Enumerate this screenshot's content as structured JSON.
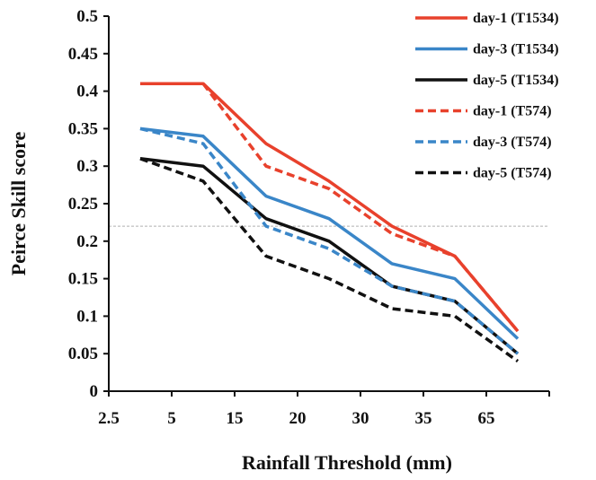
{
  "chart_data": {
    "type": "line",
    "title": "",
    "xlabel": "Rainfall Threshold (mm)",
    "ylabel": "Peirce Skill score",
    "categories": [
      "2.5",
      "5",
      "15",
      "20",
      "30",
      "35",
      "65"
    ],
    "ylim": [
      0,
      0.5
    ],
    "yticks": [
      "0",
      "0.05",
      "0.1",
      "0.15",
      "0.2",
      "0.25",
      "0.3",
      "0.35",
      "0.4",
      "0.45",
      "0.5"
    ],
    "grid": false,
    "legend_position": "top-right",
    "reference_line": {
      "y": 0.22,
      "color": "#b0b0b0",
      "style": "dashed"
    },
    "series": [
      {
        "name": "day-1 (T1534)",
        "color": "#e8412c",
        "style": "solid",
        "values": [
          0.41,
          0.41,
          0.33,
          0.28,
          0.22,
          0.18,
          0.08
        ]
      },
      {
        "name": "day-3 (T1534)",
        "color": "#3a86c8",
        "style": "solid",
        "values": [
          0.35,
          0.34,
          0.26,
          0.23,
          0.17,
          0.15,
          0.07
        ]
      },
      {
        "name": "day-5 (T1534)",
        "color": "#111111",
        "style": "solid",
        "values": [
          0.31,
          0.3,
          0.23,
          0.2,
          0.14,
          0.12,
          0.05
        ]
      },
      {
        "name": "day-1 (T574)",
        "color": "#e8412c",
        "style": "dashed",
        "values": [
          0.41,
          0.41,
          0.3,
          0.27,
          0.21,
          0.18,
          0.08
        ]
      },
      {
        "name": "day-3 (T574)",
        "color": "#3a86c8",
        "style": "dashed",
        "values": [
          0.35,
          0.33,
          0.22,
          0.19,
          0.14,
          0.12,
          0.05
        ]
      },
      {
        "name": "day-5 (T574)",
        "color": "#111111",
        "style": "dashed",
        "values": [
          0.31,
          0.28,
          0.18,
          0.15,
          0.11,
          0.1,
          0.04
        ]
      }
    ]
  }
}
